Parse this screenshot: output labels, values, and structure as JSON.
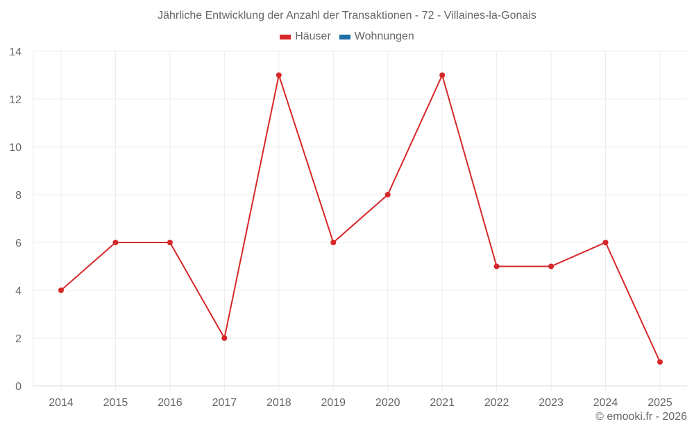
{
  "chart_data": {
    "type": "line",
    "title": "Jährliche Entwicklung der Anzahl der Transaktionen - 72 - Villaines-la-Gonais",
    "xlabel": "",
    "ylabel": "",
    "categories": [
      "2014",
      "2015",
      "2016",
      "2017",
      "2018",
      "2019",
      "2020",
      "2021",
      "2022",
      "2023",
      "2024",
      "2025"
    ],
    "series": [
      {
        "name": "Häuser",
        "color": "#d62728",
        "values": [
          4,
          6,
          6,
          2,
          13,
          6,
          8,
          13,
          5,
          5,
          6,
          1
        ]
      },
      {
        "name": "Wohnungen",
        "color": "#1f6fa8",
        "values": []
      }
    ],
    "ylim": [
      0,
      14
    ],
    "yticks": [
      0,
      2,
      4,
      6,
      8,
      10,
      12,
      14
    ],
    "grid": true,
    "legend_position": "top"
  },
  "legend": {
    "items": [
      {
        "label": "Häuser",
        "color": "#d62728"
      },
      {
        "label": "Wohnungen",
        "color": "#1f6fa8"
      }
    ]
  },
  "credit": "© emooki.fr - 2026"
}
